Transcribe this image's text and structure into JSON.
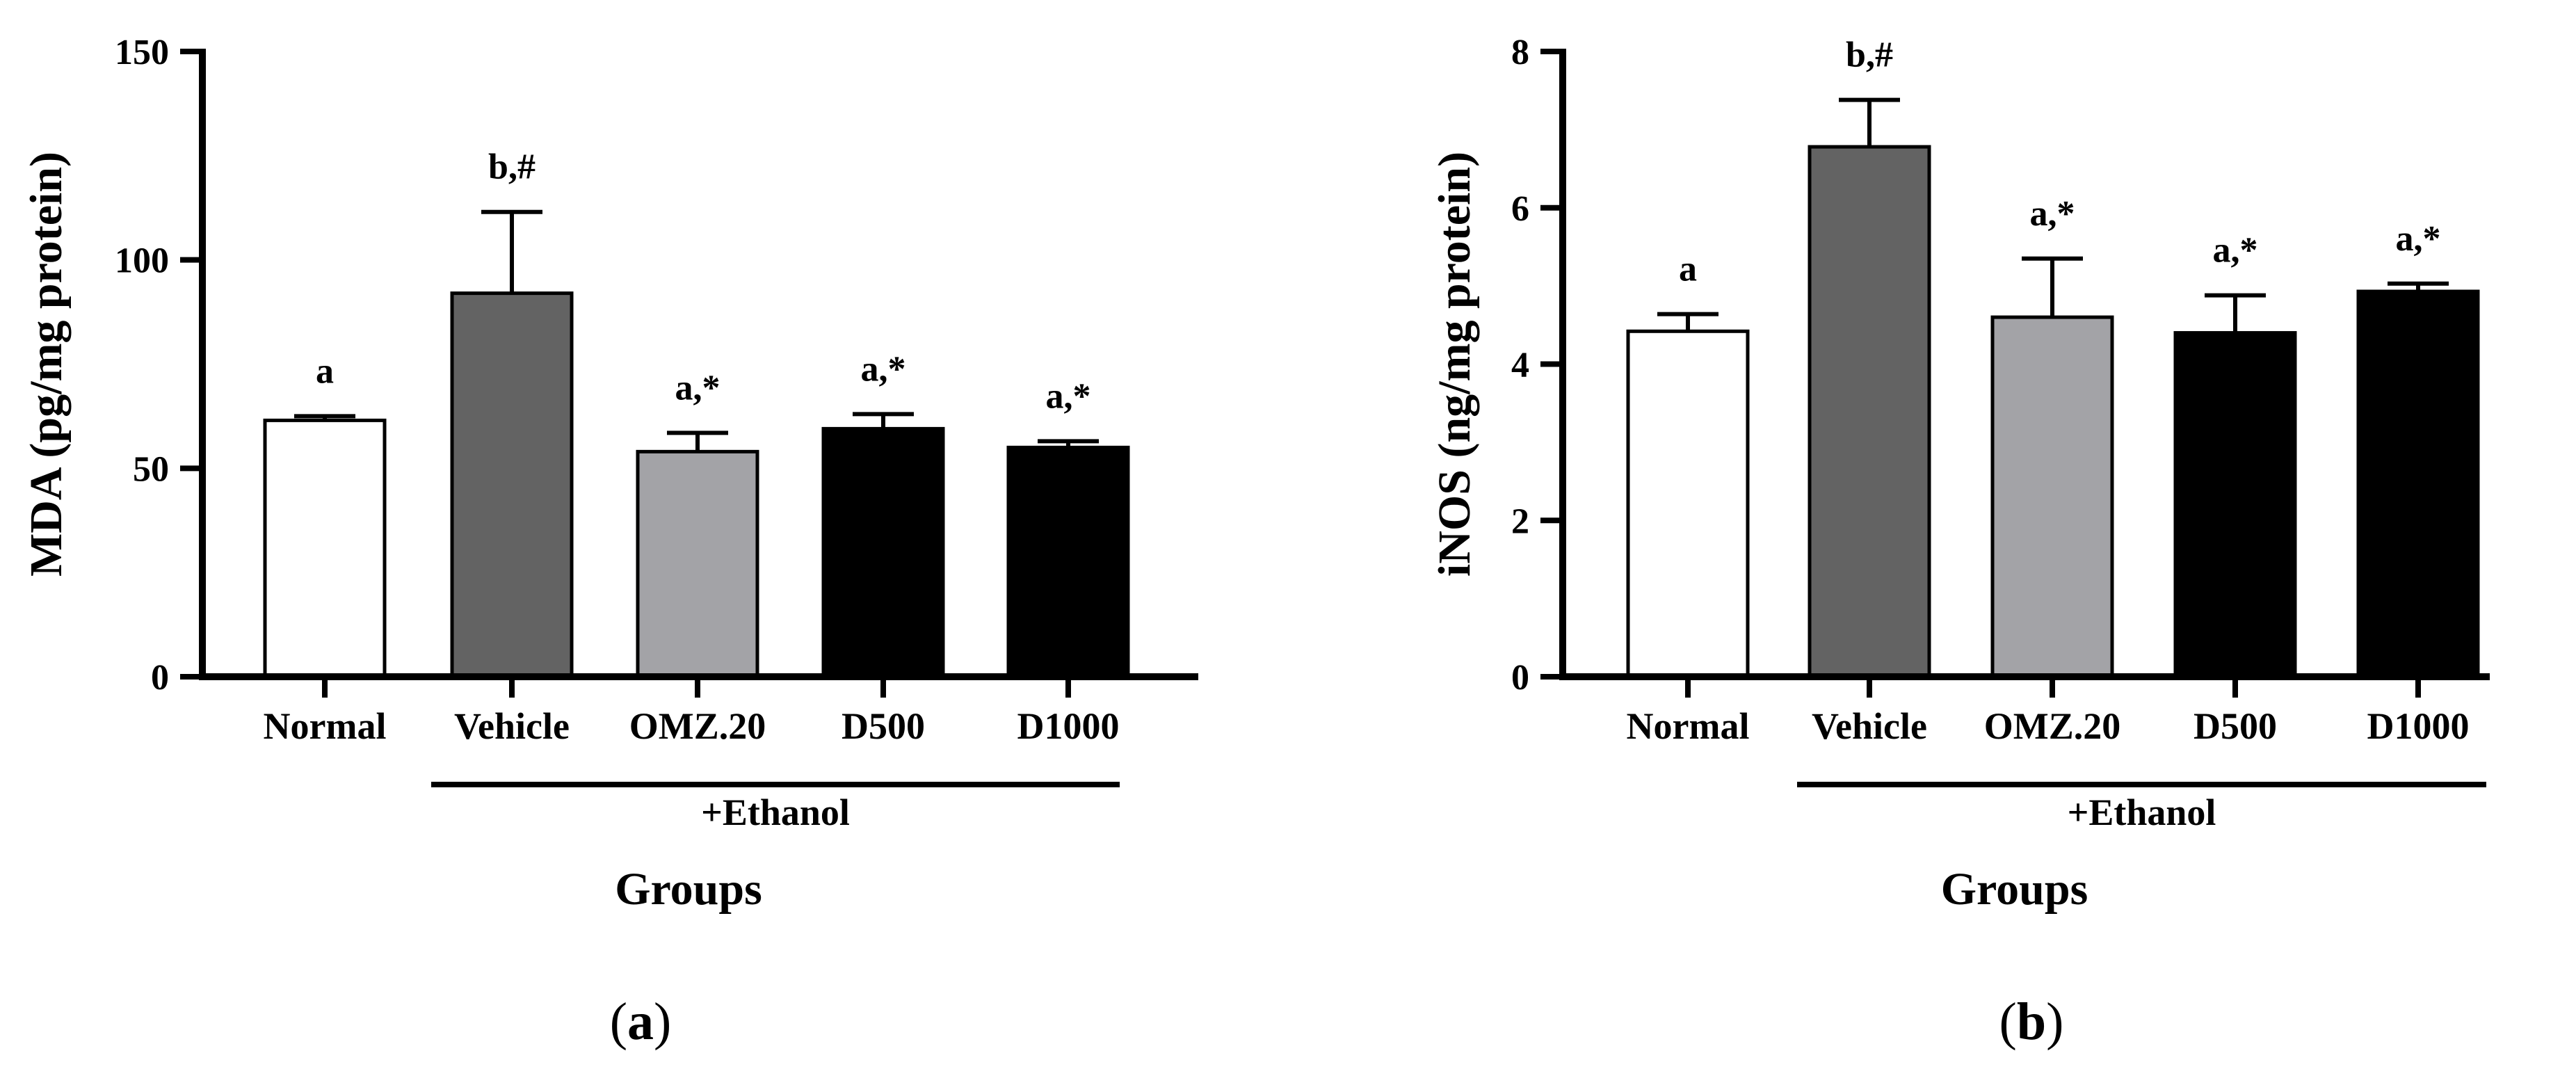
{
  "chart_data": [
    {
      "type": "bar",
      "panel": "(a)",
      "panel_letter": "a",
      "ylabel": "MDA (pg/mg protein)",
      "xlabel": "Groups",
      "group_label": "+Ethanol",
      "categories": [
        "Normal",
        "Vehicle",
        "OMZ.20",
        "D500",
        "D1000"
      ],
      "values": [
        61.5,
        92,
        54,
        59.5,
        55
      ],
      "errors": [
        1,
        19.5,
        4.5,
        3.5,
        1.5
      ],
      "significance": [
        "a",
        "b,#",
        "a,*",
        "a,*",
        "a,*"
      ],
      "ylim": [
        0,
        150
      ],
      "yticks": [
        "0",
        "50",
        "100",
        "150"
      ],
      "ytick_values": [
        0,
        50,
        100,
        150
      ],
      "bar_colors": [
        "#ffffff",
        "#636363",
        "#a3a3a7",
        "#000000",
        "#000000"
      ]
    },
    {
      "type": "bar",
      "panel": "(b)",
      "panel_letter": "b",
      "ylabel": "iNOS (ng/mg protein)",
      "xlabel": "Groups",
      "group_label": "+Ethanol",
      "categories": [
        "Normal",
        "Vehicle",
        "OMZ.20",
        "D500",
        "D1000"
      ],
      "values": [
        4.42,
        6.78,
        4.6,
        4.4,
        4.93
      ],
      "errors": [
        0.22,
        0.6,
        0.75,
        0.48,
        0.1
      ],
      "significance": [
        "a",
        "b,#",
        "a,*",
        "a,*",
        "a,*"
      ],
      "ylim": [
        0,
        8
      ],
      "yticks": [
        "0",
        "2",
        "4",
        "6",
        "8"
      ],
      "ytick_values": [
        0,
        2,
        4,
        6,
        8
      ],
      "bar_colors": [
        "#ffffff",
        "#636363",
        "#a3a3a7",
        "#000000",
        "#000000"
      ]
    }
  ]
}
